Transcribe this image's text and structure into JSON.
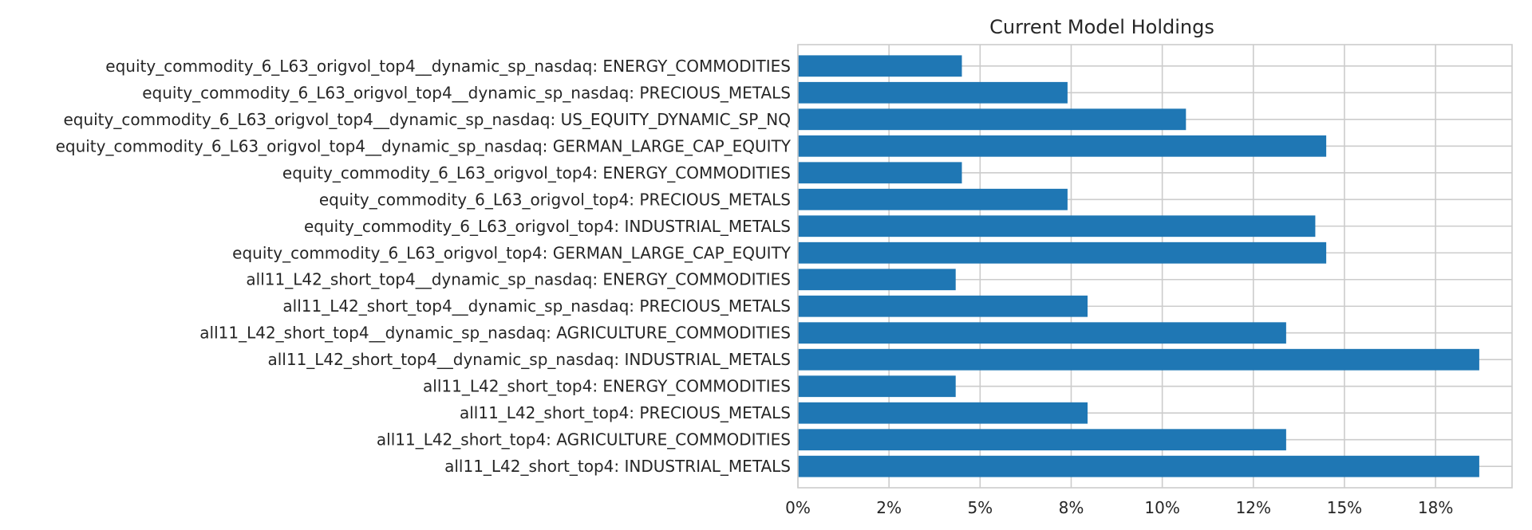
{
  "chart_data": {
    "type": "bar",
    "orientation": "horizontal",
    "title": "Current Model Holdings",
    "xlabel": "",
    "ylabel": "",
    "categories": [
      "equity_commodity_6_L63_origvol_top4__dynamic_sp_nasdaq: ENERGY_COMMODITIES",
      "equity_commodity_6_L63_origvol_top4__dynamic_sp_nasdaq: PRECIOUS_METALS",
      "equity_commodity_6_L63_origvol_top4__dynamic_sp_nasdaq: US_EQUITY_DYNAMIC_SP_NQ",
      "equity_commodity_6_L63_origvol_top4__dynamic_sp_nasdaq: GERMAN_LARGE_CAP_EQUITY",
      "equity_commodity_6_L63_origvol_top4: ENERGY_COMMODITIES",
      "equity_commodity_6_L63_origvol_top4: PRECIOUS_METALS",
      "equity_commodity_6_L63_origvol_top4: INDUSTRIAL_METALS",
      "equity_commodity_6_L63_origvol_top4: GERMAN_LARGE_CAP_EQUITY",
      "all11_L42_short_top4__dynamic_sp_nasdaq: ENERGY_COMMODITIES",
      "all11_L42_short_top4__dynamic_sp_nasdaq: PRECIOUS_METALS",
      "all11_L42_short_top4__dynamic_sp_nasdaq: AGRICULTURE_COMMODITIES",
      "all11_L42_short_top4__dynamic_sp_nasdaq: INDUSTRIAL_METALS",
      "all11_L42_short_top4: ENERGY_COMMODITIES",
      "all11_L42_short_top4: PRECIOUS_METALS",
      "all11_L42_short_top4: AGRICULTURE_COMMODITIES",
      "all11_L42_short_top4: INDUSTRIAL_METALS"
    ],
    "values": [
      4.5,
      7.4,
      10.65,
      14.5,
      4.5,
      7.4,
      14.2,
      14.5,
      4.33,
      7.95,
      13.4,
      18.7,
      4.33,
      7.95,
      13.4,
      18.7
    ],
    "unit": "%",
    "xlim": [
      0,
      19.6
    ],
    "xticks": [
      0,
      2.5,
      5,
      7.5,
      10,
      12.5,
      15,
      17.5
    ],
    "xtick_labels": [
      "0%",
      "2%",
      "5%",
      "8%",
      "10%",
      "12%",
      "15%",
      "18%"
    ],
    "grid": true,
    "colors": {
      "bar": "#1f77b4",
      "grid": "#cccccc",
      "text": "#262626",
      "spine": "#cccccc"
    }
  }
}
